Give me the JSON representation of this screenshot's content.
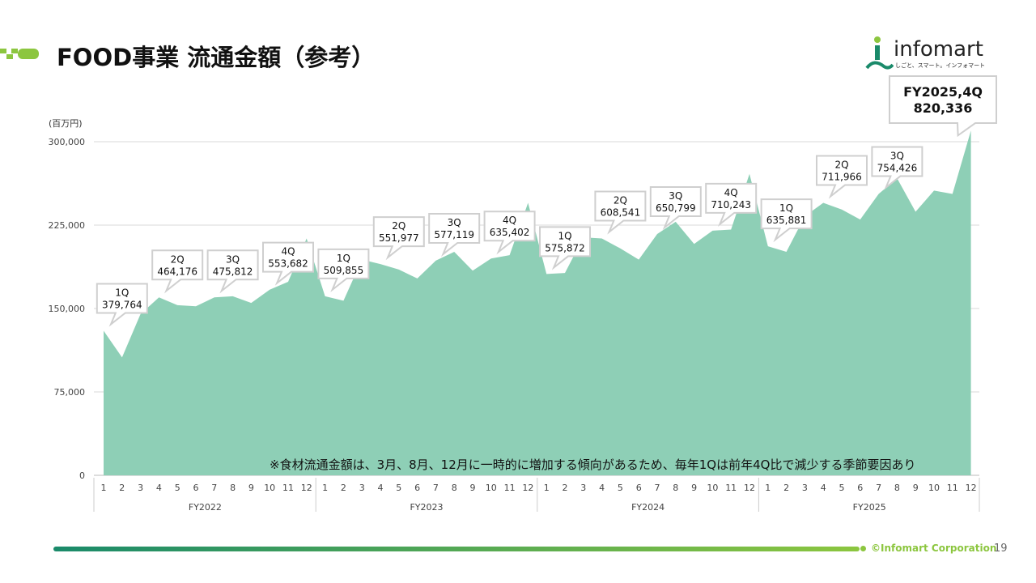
{
  "header": {
    "title": "FOOD事業 流通金額（参考）"
  },
  "logo": {
    "word": "infomart",
    "tagline": "しごと、スマート。インフォマート"
  },
  "footer": {
    "copyright": "©Infomart Corporation",
    "page": "19"
  },
  "colors": {
    "area": "#8ecfb6",
    "accent": "#8cc63f",
    "footer_start": "#1a8a6a",
    "footer_end": "#8cc63f"
  },
  "chart_data": {
    "type": "area",
    "title": "FOOD事業 流通金額（参考）",
    "ylabel": "(百万円)",
    "ylim": [
      0,
      300000
    ],
    "yticks": [
      "0",
      "75,000",
      "150,000",
      "225,000",
      "300,000"
    ],
    "grid": true,
    "x": [
      "1",
      "2",
      "3",
      "4",
      "5",
      "6",
      "7",
      "8",
      "9",
      "10",
      "11",
      "12",
      "1",
      "2",
      "3",
      "4",
      "5",
      "6",
      "7",
      "8",
      "9",
      "10",
      "11",
      "12",
      "1",
      "2",
      "3",
      "4",
      "5",
      "6",
      "7",
      "8",
      "9",
      "10",
      "11",
      "12",
      "1",
      "2",
      "3",
      "4",
      "5",
      "6",
      "7",
      "8",
      "9",
      "10",
      "11",
      "12"
    ],
    "fiscal_years": [
      "FY2022",
      "FY2023",
      "FY2024",
      "FY2025"
    ],
    "values": [
      130000,
      106000,
      145000,
      160000,
      153000,
      152000,
      160000,
      161000,
      155000,
      167000,
      174000,
      213000,
      161000,
      157000,
      194000,
      190000,
      185000,
      177000,
      193000,
      201000,
      184000,
      195000,
      198000,
      245000,
      181000,
      182000,
      214000,
      213000,
      204000,
      194000,
      217000,
      228000,
      208000,
      220000,
      221000,
      271000,
      206000,
      201000,
      233000,
      245000,
      239000,
      230000,
      253000,
      267000,
      237000,
      256000,
      253000,
      310000
    ],
    "annotations": [
      {
        "q": "1Q",
        "value": "379,764",
        "index": 0
      },
      {
        "q": "2Q",
        "value": "464,176",
        "index": 3
      },
      {
        "q": "3Q",
        "value": "475,812",
        "index": 6
      },
      {
        "q": "4Q",
        "value": "553,682",
        "index": 9
      },
      {
        "q": "1Q",
        "value": "509,855",
        "index": 12
      },
      {
        "q": "2Q",
        "value": "551,977",
        "index": 15
      },
      {
        "q": "3Q",
        "value": "577,119",
        "index": 18
      },
      {
        "q": "4Q",
        "value": "635,402",
        "index": 21
      },
      {
        "q": "1Q",
        "value": "575,872",
        "index": 24
      },
      {
        "q": "2Q",
        "value": "608,541",
        "index": 27
      },
      {
        "q": "3Q",
        "value": "650,799",
        "index": 30
      },
      {
        "q": "4Q",
        "value": "710,243",
        "index": 33
      },
      {
        "q": "1Q",
        "value": "635,881",
        "index": 36
      },
      {
        "q": "2Q",
        "value": "711,966",
        "index": 39
      },
      {
        "q": "3Q",
        "value": "754,426",
        "index": 42
      },
      {
        "q": "FY2025,4Q",
        "value": "820,336",
        "index": 45,
        "highlight": true
      }
    ],
    "note": "※食材流通金額は、3月、8月、12月に一時的に増加する傾向があるため、毎年1Qは前年4Q比で減少する季節要因あり"
  }
}
